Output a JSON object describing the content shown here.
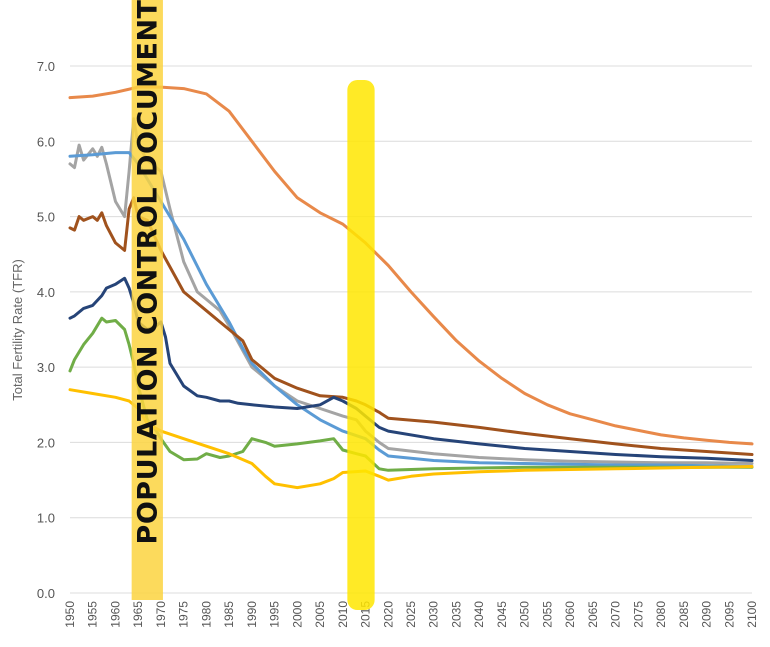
{
  "chart_data": {
    "type": "line",
    "title": "",
    "xlabel": "",
    "ylabel": "Total Fertility Rate (TFR)",
    "xlim": [
      1950,
      2100
    ],
    "ylim": [
      0,
      7
    ],
    "yticks": [
      "0.0",
      "1.0",
      "2.0",
      "3.0",
      "4.0",
      "5.0",
      "6.0",
      "7.0"
    ],
    "xticks": [
      "1950",
      "1955",
      "1960",
      "1965",
      "1970",
      "1975",
      "1980",
      "1985",
      "1990",
      "1995",
      "2000",
      "2005",
      "2010",
      "2015",
      "2020",
      "2025",
      "2030",
      "2035",
      "2040",
      "2045",
      "2050",
      "2055",
      "2060",
      "2065",
      "2070",
      "2075",
      "2080",
      "2085",
      "2090",
      "2095",
      "2100"
    ],
    "grid": true,
    "legend": "none",
    "annotation": {
      "text": "POPULATION CONTROL DOCUMENT",
      "highlight_color": "#fcd440",
      "x_range": [
        1964,
        1970
      ]
    },
    "highlight_2015": {
      "color": "#ffe600",
      "x_range": [
        1962.5,
        1964
      ],
      "x_range_2": [
        2011,
        2017
      ]
    },
    "series": [
      {
        "color": "#e8894a",
        "points": [
          [
            1950,
            6.58
          ],
          [
            1955,
            6.6
          ],
          [
            1960,
            6.65
          ],
          [
            1965,
            6.72
          ],
          [
            1970,
            6.72
          ],
          [
            1975,
            6.7
          ],
          [
            1980,
            6.63
          ],
          [
            1985,
            6.4
          ],
          [
            1990,
            6.0
          ],
          [
            1995,
            5.6
          ],
          [
            2000,
            5.25
          ],
          [
            2005,
            5.05
          ],
          [
            2010,
            4.9
          ],
          [
            2015,
            4.65
          ],
          [
            2020,
            4.35
          ],
          [
            2025,
            4.0
          ],
          [
            2030,
            3.67
          ],
          [
            2035,
            3.35
          ],
          [
            2040,
            3.08
          ],
          [
            2045,
            2.85
          ],
          [
            2050,
            2.65
          ],
          [
            2055,
            2.5
          ],
          [
            2060,
            2.38
          ],
          [
            2065,
            2.3
          ],
          [
            2070,
            2.22
          ],
          [
            2075,
            2.16
          ],
          [
            2080,
            2.1
          ],
          [
            2085,
            2.06
          ],
          [
            2090,
            2.03
          ],
          [
            2095,
            2.0
          ],
          [
            2100,
            1.98
          ]
        ]
      },
      {
        "color": "#a4a4a4",
        "points": [
          [
            1950,
            5.7
          ],
          [
            1951,
            5.65
          ],
          [
            1952,
            5.95
          ],
          [
            1953,
            5.75
          ],
          [
            1955,
            5.9
          ],
          [
            1956,
            5.8
          ],
          [
            1957,
            5.92
          ],
          [
            1958,
            5.7
          ],
          [
            1960,
            5.2
          ],
          [
            1962,
            5.0
          ],
          [
            1963,
            5.6
          ],
          [
            1964,
            6.3
          ],
          [
            1965,
            5.95
          ],
          [
            1967,
            5.75
          ],
          [
            1970,
            5.6
          ],
          [
            1972,
            5.1
          ],
          [
            1975,
            4.4
          ],
          [
            1978,
            4.0
          ],
          [
            1980,
            3.9
          ],
          [
            1983,
            3.75
          ],
          [
            1985,
            3.55
          ],
          [
            1990,
            3.0
          ],
          [
            1995,
            2.75
          ],
          [
            2000,
            2.55
          ],
          [
            2005,
            2.45
          ],
          [
            2010,
            2.35
          ],
          [
            2013,
            2.3
          ],
          [
            2015,
            2.15
          ],
          [
            2018,
            2.0
          ],
          [
            2020,
            1.92
          ],
          [
            2030,
            1.85
          ],
          [
            2040,
            1.8
          ],
          [
            2050,
            1.77
          ],
          [
            2060,
            1.75
          ],
          [
            2070,
            1.74
          ],
          [
            2080,
            1.73
          ],
          [
            2090,
            1.73
          ],
          [
            2100,
            1.72
          ]
        ]
      },
      {
        "color": "#5b9bd5",
        "points": [
          [
            1950,
            5.8
          ],
          [
            1955,
            5.82
          ],
          [
            1960,
            5.85
          ],
          [
            1963,
            5.85
          ],
          [
            1965,
            5.7
          ],
          [
            1968,
            5.4
          ],
          [
            1970,
            5.2
          ],
          [
            1975,
            4.7
          ],
          [
            1980,
            4.1
          ],
          [
            1985,
            3.6
          ],
          [
            1988,
            3.25
          ],
          [
            1990,
            3.05
          ],
          [
            1995,
            2.75
          ],
          [
            2000,
            2.5
          ],
          [
            2005,
            2.3
          ],
          [
            2010,
            2.15
          ],
          [
            2015,
            2.05
          ],
          [
            2018,
            1.9
          ],
          [
            2020,
            1.82
          ],
          [
            2030,
            1.76
          ],
          [
            2040,
            1.73
          ],
          [
            2050,
            1.72
          ],
          [
            2060,
            1.71
          ],
          [
            2070,
            1.7
          ],
          [
            2080,
            1.7
          ],
          [
            2090,
            1.69
          ],
          [
            2100,
            1.68
          ]
        ]
      },
      {
        "color": "#a0521d",
        "points": [
          [
            1950,
            4.85
          ],
          [
            1951,
            4.82
          ],
          [
            1952,
            5.0
          ],
          [
            1953,
            4.95
          ],
          [
            1955,
            5.0
          ],
          [
            1956,
            4.95
          ],
          [
            1957,
            5.05
          ],
          [
            1958,
            4.88
          ],
          [
            1960,
            4.65
          ],
          [
            1962,
            4.55
          ],
          [
            1963,
            5.1
          ],
          [
            1964,
            5.25
          ],
          [
            1965,
            5.0
          ],
          [
            1967,
            4.95
          ],
          [
            1970,
            4.55
          ],
          [
            1975,
            4.0
          ],
          [
            1980,
            3.75
          ],
          [
            1983,
            3.6
          ],
          [
            1985,
            3.5
          ],
          [
            1988,
            3.35
          ],
          [
            1990,
            3.1
          ],
          [
            1995,
            2.85
          ],
          [
            2000,
            2.72
          ],
          [
            2005,
            2.62
          ],
          [
            2010,
            2.6
          ],
          [
            2013,
            2.55
          ],
          [
            2015,
            2.5
          ],
          [
            2018,
            2.4
          ],
          [
            2020,
            2.32
          ],
          [
            2030,
            2.27
          ],
          [
            2040,
            2.2
          ],
          [
            2050,
            2.12
          ],
          [
            2060,
            2.05
          ],
          [
            2070,
            1.98
          ],
          [
            2080,
            1.92
          ],
          [
            2090,
            1.88
          ],
          [
            2100,
            1.84
          ]
        ]
      },
      {
        "color": "#264478",
        "points": [
          [
            1950,
            3.65
          ],
          [
            1951,
            3.68
          ],
          [
            1953,
            3.78
          ],
          [
            1955,
            3.82
          ],
          [
            1957,
            3.95
          ],
          [
            1958,
            4.05
          ],
          [
            1960,
            4.1
          ],
          [
            1962,
            4.18
          ],
          [
            1963,
            4.05
          ],
          [
            1964,
            3.85
          ],
          [
            1965,
            3.6
          ],
          [
            1967,
            3.5
          ],
          [
            1969,
            3.55
          ],
          [
            1970,
            3.6
          ],
          [
            1971,
            3.4
          ],
          [
            1972,
            3.05
          ],
          [
            1975,
            2.75
          ],
          [
            1978,
            2.62
          ],
          [
            1980,
            2.6
          ],
          [
            1983,
            2.55
          ],
          [
            1985,
            2.55
          ],
          [
            1987,
            2.52
          ],
          [
            1990,
            2.5
          ],
          [
            1995,
            2.47
          ],
          [
            2000,
            2.45
          ],
          [
            2005,
            2.5
          ],
          [
            2008,
            2.6
          ],
          [
            2010,
            2.55
          ],
          [
            2013,
            2.45
          ],
          [
            2015,
            2.35
          ],
          [
            2018,
            2.2
          ],
          [
            2020,
            2.15
          ],
          [
            2030,
            2.05
          ],
          [
            2040,
            1.98
          ],
          [
            2050,
            1.92
          ],
          [
            2060,
            1.88
          ],
          [
            2070,
            1.84
          ],
          [
            2080,
            1.81
          ],
          [
            2090,
            1.79
          ],
          [
            2100,
            1.76
          ]
        ]
      },
      {
        "color": "#70ad47",
        "points": [
          [
            1950,
            2.95
          ],
          [
            1951,
            3.1
          ],
          [
            1953,
            3.3
          ],
          [
            1955,
            3.45
          ],
          [
            1957,
            3.65
          ],
          [
            1958,
            3.6
          ],
          [
            1960,
            3.62
          ],
          [
            1962,
            3.5
          ],
          [
            1963,
            3.3
          ],
          [
            1964,
            3.05
          ],
          [
            1965,
            2.75
          ],
          [
            1967,
            2.3
          ],
          [
            1969,
            2.15
          ],
          [
            1970,
            2.05
          ],
          [
            1972,
            1.88
          ],
          [
            1975,
            1.77
          ],
          [
            1978,
            1.78
          ],
          [
            1980,
            1.85
          ],
          [
            1983,
            1.8
          ],
          [
            1985,
            1.82
          ],
          [
            1988,
            1.88
          ],
          [
            1990,
            2.05
          ],
          [
            1993,
            2.0
          ],
          [
            1995,
            1.95
          ],
          [
            2000,
            1.98
          ],
          [
            2005,
            2.02
          ],
          [
            2008,
            2.05
          ],
          [
            2010,
            1.9
          ],
          [
            2013,
            1.85
          ],
          [
            2015,
            1.82
          ],
          [
            2018,
            1.65
          ],
          [
            2020,
            1.63
          ],
          [
            2030,
            1.65
          ],
          [
            2040,
            1.66
          ],
          [
            2050,
            1.67
          ],
          [
            2060,
            1.67
          ],
          [
            2070,
            1.67
          ],
          [
            2080,
            1.67
          ],
          [
            2090,
            1.67
          ],
          [
            2100,
            1.67
          ]
        ]
      },
      {
        "color": "#ffc000",
        "points": [
          [
            1950,
            2.7
          ],
          [
            1955,
            2.65
          ],
          [
            1960,
            2.6
          ],
          [
            1963,
            2.55
          ],
          [
            1965,
            2.45
          ],
          [
            1967,
            2.25
          ],
          [
            1970,
            2.15
          ],
          [
            1975,
            2.05
          ],
          [
            1980,
            1.95
          ],
          [
            1985,
            1.85
          ],
          [
            1990,
            1.72
          ],
          [
            1993,
            1.55
          ],
          [
            1995,
            1.45
          ],
          [
            2000,
            1.4
          ],
          [
            2005,
            1.45
          ],
          [
            2008,
            1.52
          ],
          [
            2010,
            1.6
          ],
          [
            2015,
            1.62
          ],
          [
            2018,
            1.55
          ],
          [
            2020,
            1.5
          ],
          [
            2025,
            1.55
          ],
          [
            2030,
            1.58
          ],
          [
            2040,
            1.61
          ],
          [
            2050,
            1.63
          ],
          [
            2060,
            1.64
          ],
          [
            2070,
            1.65
          ],
          [
            2080,
            1.66
          ],
          [
            2090,
            1.67
          ],
          [
            2100,
            1.68
          ]
        ]
      }
    ]
  }
}
